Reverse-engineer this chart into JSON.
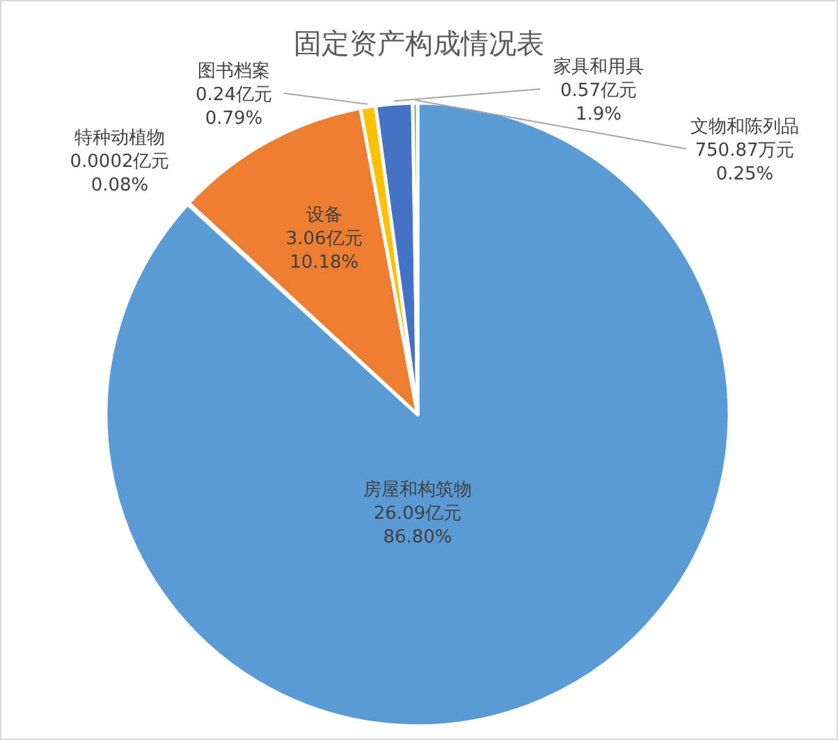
{
  "chart_data": {
    "type": "pie",
    "title": "固定资产构成情况表",
    "categories": [
      "房屋和构筑物",
      "特种动植物",
      "设备",
      "图书档案",
      "家具和用具",
      "文物和陈列品"
    ],
    "values": [
      86.8,
      0.08,
      10.18,
      0.79,
      1.9,
      0.25
    ],
    "colors": [
      "#5b9bd5",
      "#a5a5a5",
      "#ed7d31",
      "#ffc000",
      "#4472c4",
      "#70ad47"
    ],
    "value_labels": [
      "26.09亿元\n86.80%",
      "0.0002亿元\n0.08%",
      "3.06亿元\n10.18%",
      "0.24亿元\n0.79%",
      "0.57亿元\n1.9%",
      "750.87万元\n0.25%"
    ]
  }
}
